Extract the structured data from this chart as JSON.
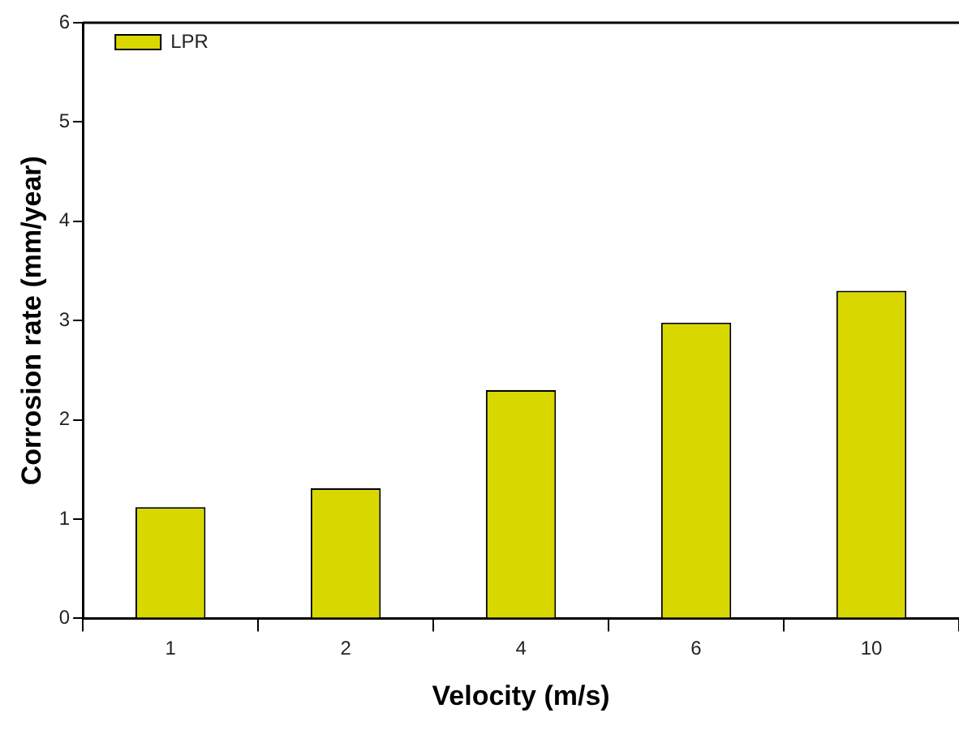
{
  "chart_data": {
    "type": "bar",
    "xlabel": "Velocity (m/s)",
    "ylabel": "Corrosion rate (mm/year)",
    "categories": [
      "1",
      "2",
      "4",
      "6",
      "10"
    ],
    "series": [
      {
        "name": "LPR",
        "color": "#d8d800",
        "values": [
          1.12,
          1.31,
          2.3,
          2.98,
          3.3
        ]
      }
    ],
    "ylim": [
      0,
      6
    ],
    "yticks": [
      0,
      1,
      2,
      3,
      4,
      5,
      6
    ],
    "grid": false,
    "legend": "top left"
  }
}
